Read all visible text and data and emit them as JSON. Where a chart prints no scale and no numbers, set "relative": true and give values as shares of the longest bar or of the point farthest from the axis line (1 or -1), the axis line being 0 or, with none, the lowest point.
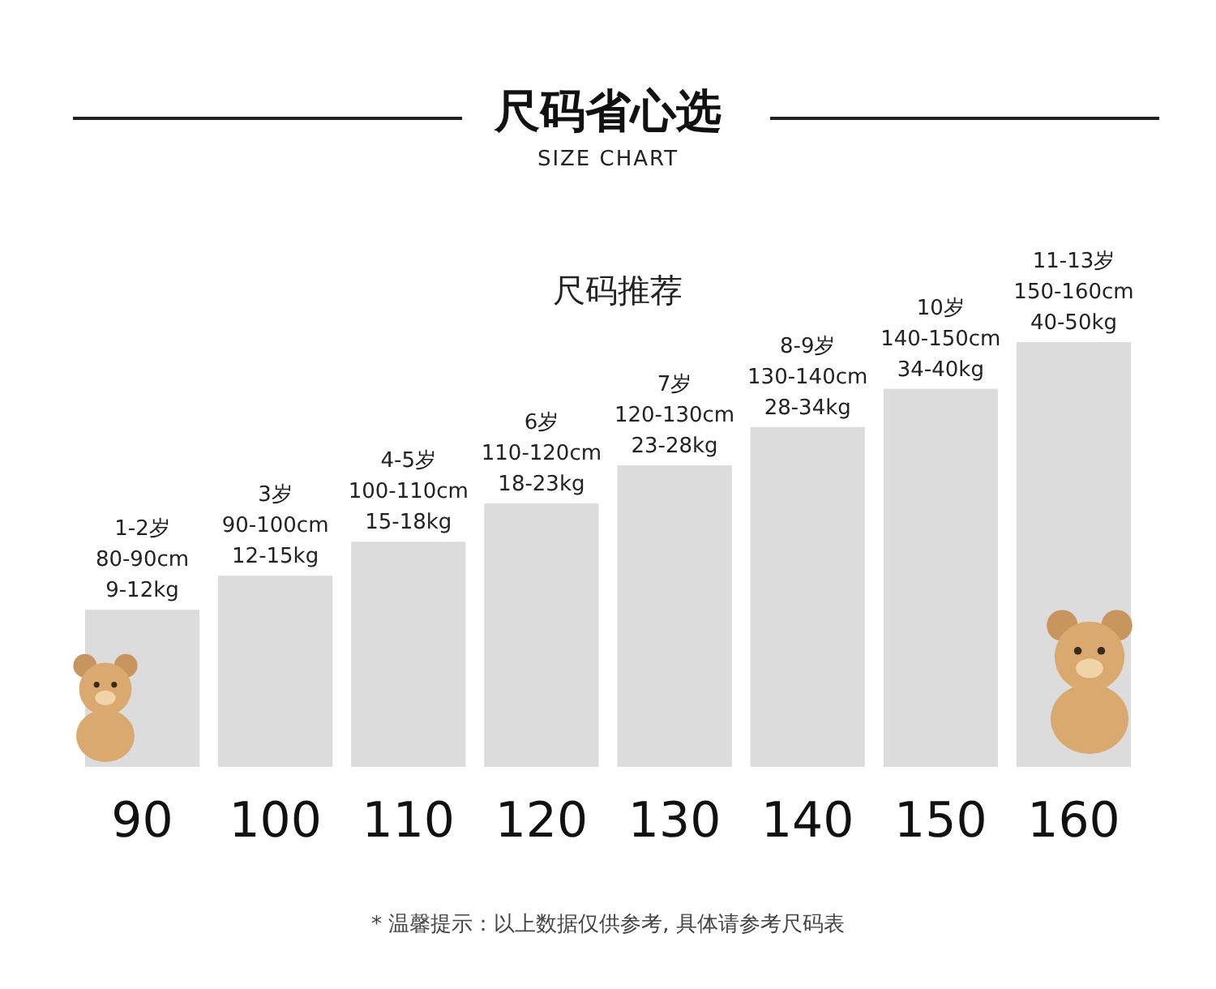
{
  "chart_data": {
    "type": "bar",
    "title": "尺码省心选",
    "subtitle": "SIZE CHART",
    "relative": true,
    "categories": [
      "90",
      "100",
      "110",
      "120",
      "130",
      "140",
      "150",
      "160"
    ],
    "values": [
      0.37,
      0.45,
      0.53,
      0.62,
      0.71,
      0.8,
      0.89,
      1
    ],
    "color": "#dcdcdc",
    "annotations": [
      "尺码推荐",
      "* 温馨提示：以上数据仅供参考, 具体请参考尺码表",
      {
        "text": "1-2岁\n80-90cm\n9-12kg",
        "x": "90",
        "y": 0.37
      },
      {
        "text": "3岁\n90-100cm\n12-15kg",
        "x": "100",
        "y": 0.45
      },
      {
        "text": "4-5岁\n100-110cm\n15-18kg",
        "x": "110",
        "y": 0.53
      },
      {
        "text": "6岁\n110-120cm\n18-23kg",
        "x": "120",
        "y": 0.62
      },
      {
        "text": "7岁\n120-130cm\n23-28kg",
        "x": "130",
        "y": 0.71
      },
      {
        "text": "8-9岁\n130-140cm\n28-34kg",
        "x": "140",
        "y": 0.8
      },
      {
        "text": "10岁\n140-150cm\n34-40kg",
        "x": "150",
        "y": 0.89
      },
      {
        "text": "11-13岁\n150-160cm\n40-50kg",
        "x": "160",
        "y": 1
      }
    ]
  }
}
